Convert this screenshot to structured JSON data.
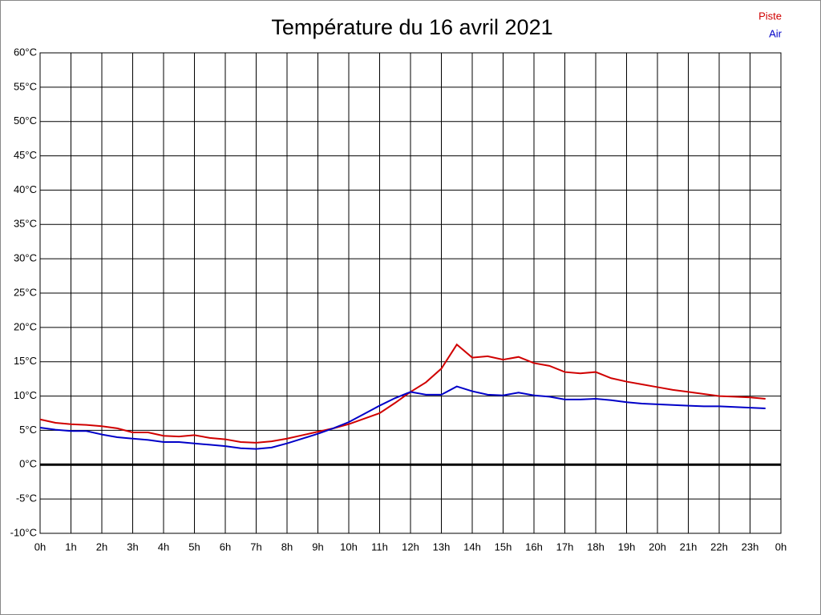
{
  "chart_data": {
    "type": "line",
    "title": "Température du 16 avril 2021",
    "x": [
      0,
      0.5,
      1,
      1.5,
      2,
      2.5,
      3,
      3.5,
      4,
      4.5,
      5,
      5.5,
      6,
      6.5,
      7,
      7.5,
      8,
      8.5,
      9,
      9.5,
      10,
      10.5,
      11,
      11.5,
      12,
      12.5,
      13,
      13.5,
      14,
      14.5,
      15,
      15.5,
      16,
      16.5,
      17,
      17.5,
      18,
      18.5,
      19,
      19.5,
      20,
      20.5,
      21,
      21.5,
      22,
      22.5,
      23,
      23.5
    ],
    "series": [
      {
        "name": "Piste",
        "color": "#d00000",
        "values": [
          6.6,
          6.1,
          5.9,
          5.8,
          5.6,
          5.3,
          4.7,
          4.7,
          4.2,
          4.1,
          4.3,
          3.9,
          3.7,
          3.3,
          3.2,
          3.4,
          3.8,
          4.3,
          4.8,
          5.3,
          5.9,
          6.7,
          7.5,
          9.0,
          10.6,
          12.0,
          14.0,
          17.5,
          15.6,
          15.8,
          15.3,
          15.7,
          14.8,
          14.4,
          13.5,
          13.3,
          13.5,
          12.6,
          12.1,
          11.7,
          11.3,
          10.9,
          10.6,
          10.3,
          10.0,
          9.9,
          9.8,
          9.6
        ]
      },
      {
        "name": "Air",
        "color": "#0000c8",
        "values": [
          5.4,
          5.1,
          4.9,
          4.9,
          4.4,
          4.0,
          3.8,
          3.6,
          3.3,
          3.3,
          3.1,
          2.9,
          2.7,
          2.4,
          2.3,
          2.5,
          3.1,
          3.8,
          4.5,
          5.3,
          6.2,
          7.4,
          8.6,
          9.7,
          10.6,
          10.2,
          10.2,
          11.4,
          10.7,
          10.2,
          10.1,
          10.5,
          10.1,
          9.9,
          9.5,
          9.5,
          9.6,
          9.4,
          9.1,
          8.9,
          8.8,
          8.7,
          8.6,
          8.5,
          8.5,
          8.4,
          8.3,
          8.2
        ]
      }
    ],
    "xlim": [
      0,
      24
    ],
    "xticks": [
      {
        "value": 0,
        "label": "0h"
      },
      {
        "value": 1,
        "label": "1h"
      },
      {
        "value": 2,
        "label": "2h"
      },
      {
        "value": 3,
        "label": "3h"
      },
      {
        "value": 4,
        "label": "4h"
      },
      {
        "value": 5,
        "label": "5h"
      },
      {
        "value": 6,
        "label": "6h"
      },
      {
        "value": 7,
        "label": "7h"
      },
      {
        "value": 8,
        "label": "8h"
      },
      {
        "value": 9,
        "label": "9h"
      },
      {
        "value": 10,
        "label": "10h"
      },
      {
        "value": 11,
        "label": "11h"
      },
      {
        "value": 12,
        "label": "12h"
      },
      {
        "value": 13,
        "label": "13h"
      },
      {
        "value": 14,
        "label": "14h"
      },
      {
        "value": 15,
        "label": "15h"
      },
      {
        "value": 16,
        "label": "16h"
      },
      {
        "value": 17,
        "label": "17h"
      },
      {
        "value": 18,
        "label": "18h"
      },
      {
        "value": 19,
        "label": "19h"
      },
      {
        "value": 20,
        "label": "20h"
      },
      {
        "value": 21,
        "label": "21h"
      },
      {
        "value": 22,
        "label": "22h"
      },
      {
        "value": 23,
        "label": "23h"
      },
      {
        "value": 24,
        "label": "0h"
      }
    ],
    "ylim": [
      -10,
      60
    ],
    "yticks": [
      {
        "value": -10,
        "label": "-10°C"
      },
      {
        "value": -5,
        "label": "-5°C"
      },
      {
        "value": 0,
        "label": "0°C"
      },
      {
        "value": 5,
        "label": "5°C"
      },
      {
        "value": 10,
        "label": "10°C"
      },
      {
        "value": 15,
        "label": "15°C"
      },
      {
        "value": 20,
        "label": "20°C"
      },
      {
        "value": 25,
        "label": "25°C"
      },
      {
        "value": 30,
        "label": "30°C"
      },
      {
        "value": 35,
        "label": "35°C"
      },
      {
        "value": 40,
        "label": "40°C"
      },
      {
        "value": 45,
        "label": "45°C"
      },
      {
        "value": 50,
        "label": "50°C"
      },
      {
        "value": 55,
        "label": "55°C"
      },
      {
        "value": 60,
        "label": "60°C"
      }
    ],
    "grid": true,
    "legend": "top-right"
  }
}
